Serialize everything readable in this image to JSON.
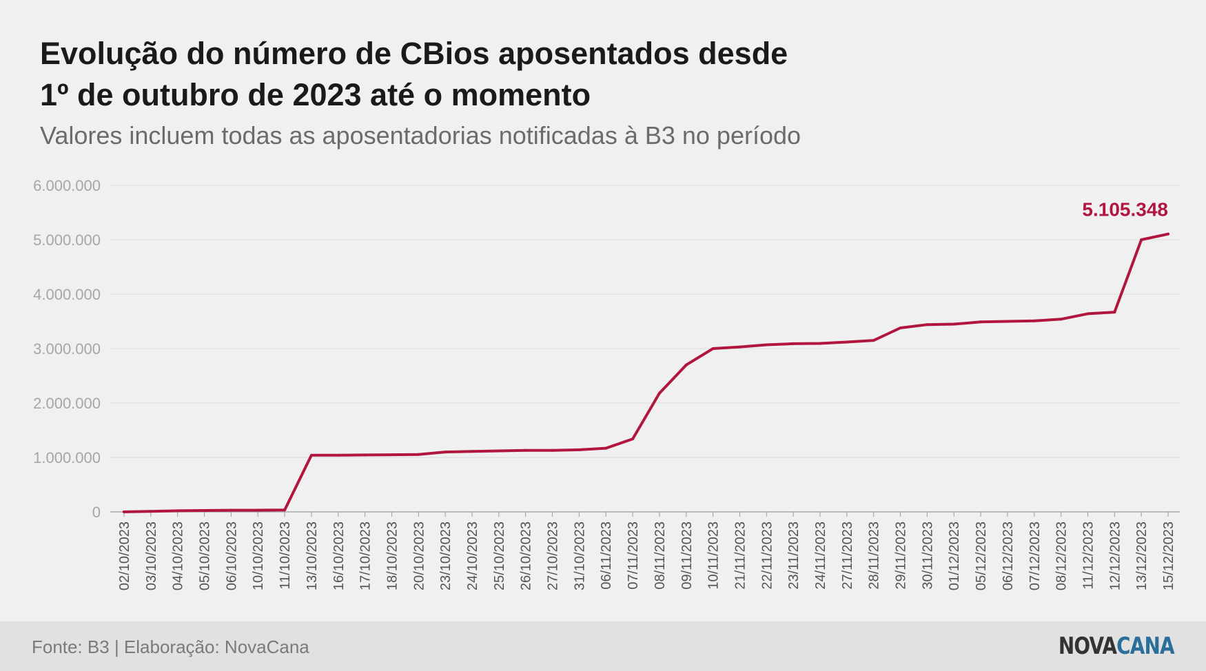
{
  "title_line1": "Evolução do número de CBios aposentados desde",
  "title_line2": "1º de outubro de 2023 até o momento",
  "subtitle": "Valores incluem todas as aposentadorias notificadas à B3 no período",
  "footer": {
    "source": "Fonte: B3 | Elaboração: NovaCana",
    "logo_part1": "NOVA",
    "logo_part2": "CANA"
  },
  "colors": {
    "line": "#b0163e",
    "grid": "#dddddd",
    "tick_text": "#a6a6a6",
    "logo_dark": "#333333",
    "logo_accent": "#2a6f9a"
  },
  "chart_data": {
    "type": "line",
    "ylim": [
      0,
      6000000
    ],
    "yticks": [
      0,
      1000000,
      2000000,
      3000000,
      4000000,
      5000000,
      6000000
    ],
    "ytick_labels": [
      "0",
      "1.000.000",
      "2.000.000",
      "3.000.000",
      "4.000.000",
      "5.000.000",
      "6.000.000"
    ],
    "grid": true,
    "categories": [
      "02/10/2023",
      "03/10/2023",
      "04/10/2023",
      "05/10/2023",
      "06/10/2023",
      "10/10/2023",
      "11/10/2023",
      "13/10/2023",
      "16/10/2023",
      "17/10/2023",
      "18/10/2023",
      "20/10/2023",
      "23/10/2023",
      "24/10/2023",
      "25/10/2023",
      "26/10/2023",
      "27/10/2023",
      "31/10/2023",
      "06/11/2023",
      "07/11/2023",
      "08/11/2023",
      "09/11/2023",
      "10/11/2023",
      "21/11/2023",
      "22/11/2023",
      "23/11/2023",
      "24/11/2023",
      "27/11/2023",
      "28/11/2023",
      "29/11/2023",
      "30/11/2023",
      "01/12/2023",
      "05/12/2023",
      "06/12/2023",
      "07/12/2023",
      "08/12/2023",
      "11/12/2023",
      "12/12/2023",
      "13/12/2023",
      "15/12/2023"
    ],
    "values": [
      0,
      10000,
      20000,
      25000,
      30000,
      30000,
      35000,
      1040000,
      1040000,
      1045000,
      1050000,
      1055000,
      1100000,
      1110000,
      1120000,
      1130000,
      1130000,
      1140000,
      1170000,
      1340000,
      2180000,
      2700000,
      3000000,
      3030000,
      3070000,
      3090000,
      3095000,
      3120000,
      3150000,
      3380000,
      3440000,
      3450000,
      3490000,
      3500000,
      3510000,
      3540000,
      3640000,
      3670000,
      5000000,
      5105348
    ],
    "annotation": "5.105.348"
  }
}
